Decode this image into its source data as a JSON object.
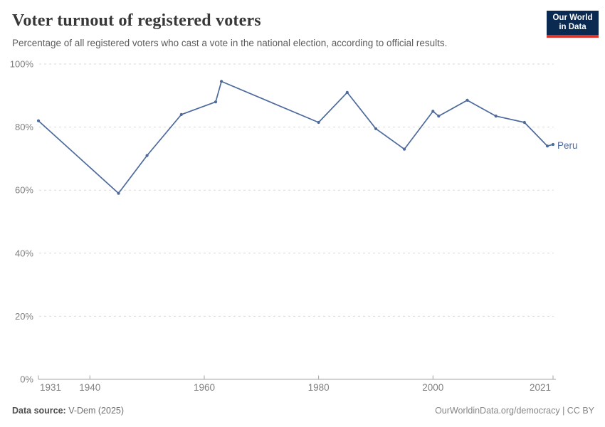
{
  "header": {
    "title": "Voter turnout of registered voters",
    "subtitle": "Percentage of all registered voters who cast a vote in the national election, according to official results.",
    "logo": {
      "line1": "Our World",
      "line2": "in Data",
      "bg_color": "#0b2a51",
      "accent_color": "#dc352b"
    }
  },
  "chart_data": {
    "type": "line",
    "title": "Voter turnout of registered voters",
    "xlabel": "",
    "ylabel": "",
    "xlim": [
      1931,
      2021
    ],
    "ylim": [
      0,
      100
    ],
    "x_ticks": [
      1931,
      1940,
      1960,
      1980,
      2000,
      2021
    ],
    "y_ticks": [
      0,
      20,
      40,
      60,
      80,
      100
    ],
    "y_tick_suffix": "%",
    "grid": "horizontal-dashed",
    "legend_position": "end-of-line",
    "colors": {
      "line": "#4c6a9c",
      "grid": "#dadada",
      "axis": "#a3a3a3",
      "tick_text": "#808080"
    },
    "series": [
      {
        "name": "Peru",
        "color": "#4c6a9c",
        "points": [
          {
            "x": 1931,
            "y": 82
          },
          {
            "x": 1945,
            "y": 59
          },
          {
            "x": 1950,
            "y": 71
          },
          {
            "x": 1956,
            "y": 84
          },
          {
            "x": 1962,
            "y": 88
          },
          {
            "x": 1963,
            "y": 94.5
          },
          {
            "x": 1980,
            "y": 81.5
          },
          {
            "x": 1985,
            "y": 91
          },
          {
            "x": 1990,
            "y": 79.5
          },
          {
            "x": 1995,
            "y": 73
          },
          {
            "x": 2000,
            "y": 85
          },
          {
            "x": 2001,
            "y": 83.5
          },
          {
            "x": 2006,
            "y": 88.5
          },
          {
            "x": 2011,
            "y": 83.5
          },
          {
            "x": 2016,
            "y": 81.5
          },
          {
            "x": 2020,
            "y": 74
          },
          {
            "x": 2021,
            "y": 74.5
          }
        ]
      }
    ]
  },
  "footer": {
    "datasource_label": "Data source:",
    "datasource_value": "V-Dem (2025)",
    "right_text": "OurWorldinData.org/democracy | CC BY"
  }
}
